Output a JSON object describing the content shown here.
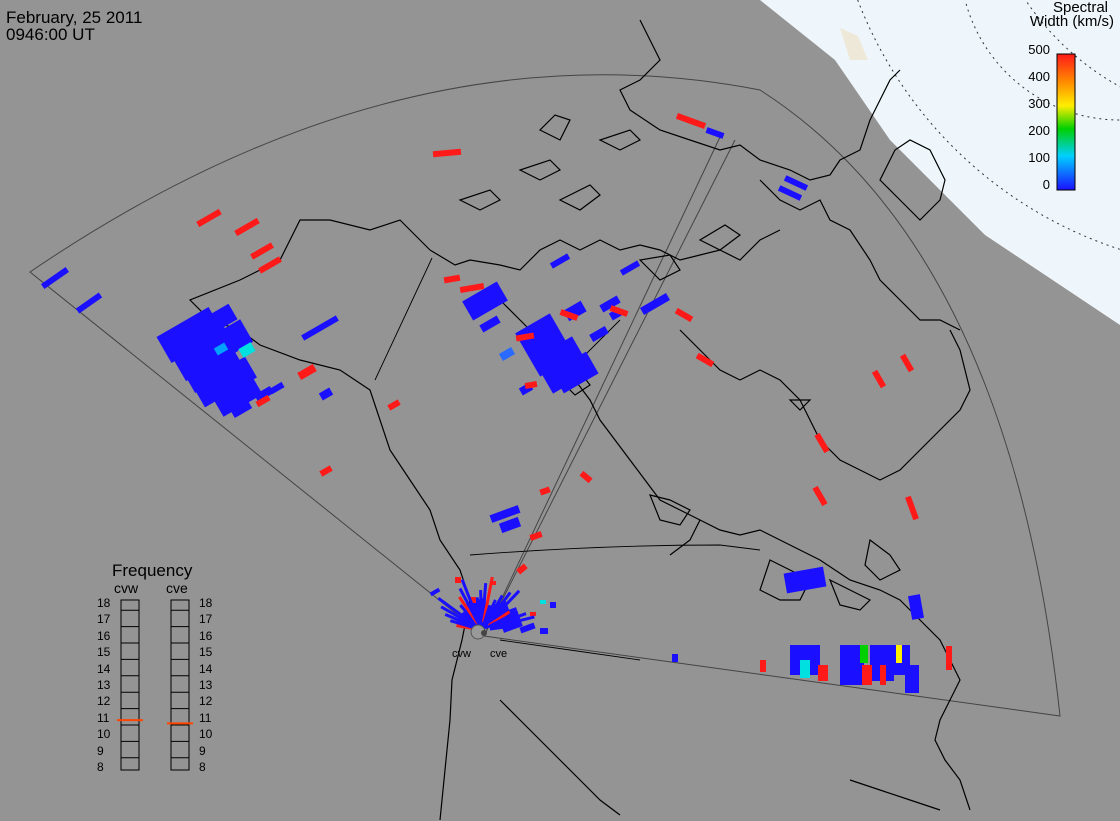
{
  "header": {
    "date": "February, 25 2011",
    "time": "0946:00 UT"
  },
  "colorbar": {
    "title_line1": "Spectral",
    "title_line2": "Width (km/s)",
    "ticks": [
      "500",
      "400",
      "300",
      "200",
      "100",
      "0"
    ],
    "colors": {
      "low": "#1a10ff",
      "mid_low": "#00e0e0",
      "mid": "#00d000",
      "mid_high": "#ffee00",
      "high": "#ff1a1a"
    }
  },
  "frequency": {
    "title": "Frequency",
    "left_label": "cvw",
    "right_label": "cve",
    "scale": [
      "18",
      "17",
      "16",
      "15",
      "14",
      "13",
      "12",
      "11",
      "10",
      "9",
      "8"
    ],
    "cvw_value_mhz": 10.8,
    "cve_value_mhz": 10.6,
    "marker_color": "#ff4400"
  },
  "sites": {
    "west": "cvw",
    "east": "cve"
  }
}
